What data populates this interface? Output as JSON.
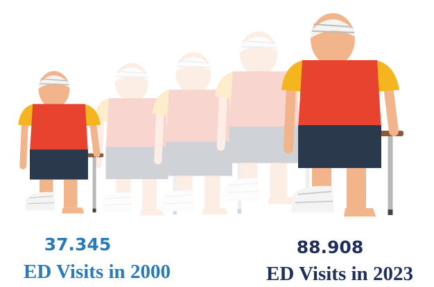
{
  "before": {
    "figure": "37.345",
    "caption": "ED Visits in 2000"
  },
  "after": {
    "figure": "88.908",
    "caption": "ED Visits in 2023"
  }
}
